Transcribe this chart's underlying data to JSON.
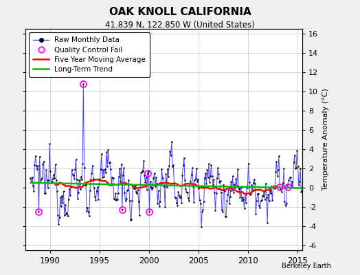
{
  "title": "OAK KNOLL CALIFORNIA",
  "subtitle": "41.839 N, 122.850 W (United States)",
  "ylabel_right": "Temperature Anomaly (°C)",
  "credit": "Berkeley Earth",
  "xlim": [
    1987.5,
    2015.5
  ],
  "ylim": [
    -6.5,
    16.5
  ],
  "yticks": [
    -6,
    -4,
    -2,
    0,
    2,
    4,
    6,
    8,
    10,
    12,
    14,
    16
  ],
  "xticks": [
    1990,
    1995,
    2000,
    2005,
    2010,
    2015
  ],
  "bg_color": "#f0f0f0",
  "plot_bg_color": "#ffffff",
  "raw_color": "#4444ff",
  "ma_color": "#ff0000",
  "trend_color": "#00bb00",
  "qc_color": "#ff00ff",
  "seed": 12345
}
